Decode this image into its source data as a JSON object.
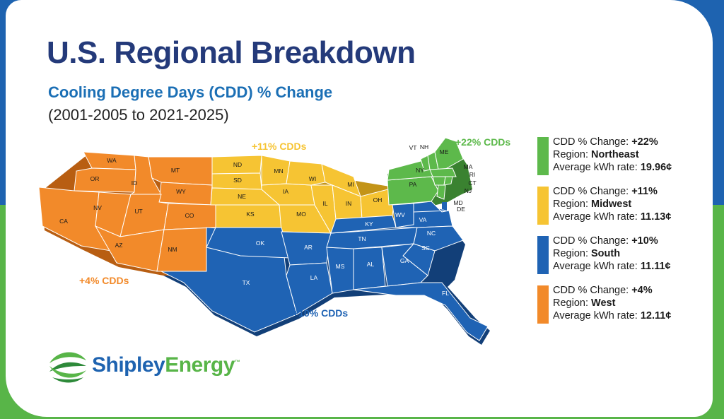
{
  "title": "U.S. Regional Breakdown",
  "subtitle": "Cooling Degree Days (CDD) % Change",
  "date_range": "(2001-2005 to 2021-2025)",
  "colors": {
    "west": "#f28a2a",
    "midwest": "#f6c433",
    "south": "#1f63b4",
    "northeast": "#5db94b",
    "title": "#243a7a"
  },
  "map": {
    "callouts": {
      "west": "+4% CDDs",
      "midwest": "+11% CDDs",
      "south": "+10% CDDs",
      "northeast": "+22% CDDs"
    },
    "states": [
      "WA",
      "OR",
      "CA",
      "NV",
      "ID",
      "MT",
      "WY",
      "UT",
      "CO",
      "AZ",
      "NM",
      "ND",
      "SD",
      "NE",
      "KS",
      "MN",
      "IA",
      "MO",
      "WI",
      "IL",
      "MI",
      "IN",
      "OH",
      "TX",
      "OK",
      "AR",
      "LA",
      "MS",
      "AL",
      "TN",
      "KY",
      "WV",
      "VA",
      "NC",
      "SC",
      "GA",
      "FL",
      "MD",
      "DE",
      "ME",
      "VT",
      "NH",
      "MA",
      "RI",
      "CT",
      "NJ",
      "NY",
      "PA"
    ]
  },
  "legend": [
    {
      "color": "#5db94b",
      "change_label": "CDD % Change: ",
      "change": "+22%",
      "region_label": "Region: ",
      "region": "Northeast",
      "rate_label": "Average kWh rate: ",
      "rate": "19.96¢"
    },
    {
      "color": "#f6c433",
      "change_label": "CDD % Change: ",
      "change": "+11%",
      "region_label": "Region: ",
      "region": "Midwest",
      "rate_label": "Average kWh rate: ",
      "rate": "11.13¢"
    },
    {
      "color": "#1f63b4",
      "change_label": "CDD % Change: ",
      "change": "+10%",
      "region_label": "Region: ",
      "region": "South",
      "rate_label": "Average kWh rate: ",
      "rate": "11.11¢"
    },
    {
      "color": "#f28a2a",
      "change_label": "CDD % Change: ",
      "change": "+4%",
      "region_label": "Region: ",
      "region": "West",
      "rate_label": "Average kWh rate: ",
      "rate": "12.11¢"
    }
  ],
  "brand": {
    "part1": "Shipley",
    "part2": "Energy",
    "tm": "™"
  }
}
